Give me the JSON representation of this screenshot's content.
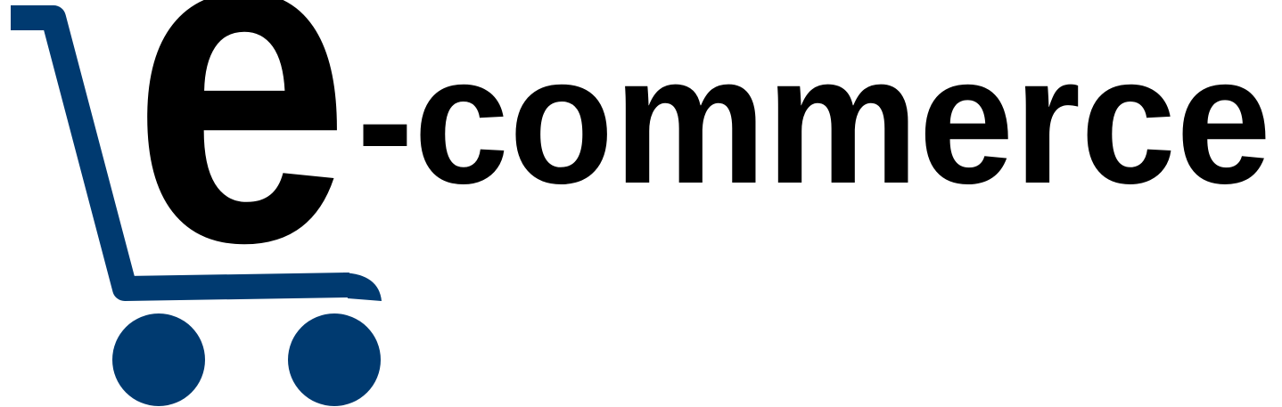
{
  "logo": {
    "initial": "e",
    "rest": "-commerce"
  }
}
